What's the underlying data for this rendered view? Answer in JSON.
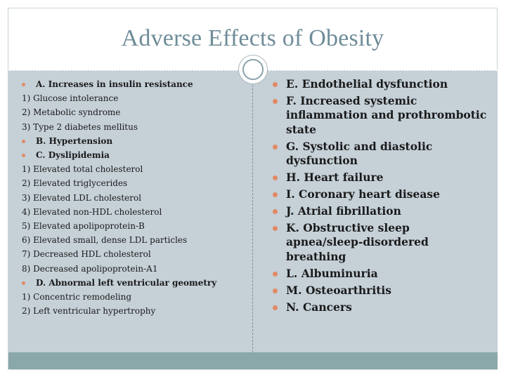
{
  "slide": {
    "title": "Adverse Effects of Obesity",
    "left_items": [
      {
        "kind": "head",
        "text": "A. Increases in insulin resistance"
      },
      {
        "kind": "sub",
        "text": "1) Glucose intolerance"
      },
      {
        "kind": "sub",
        "text": "2) Metabolic syndrome"
      },
      {
        "kind": "sub",
        "text": "3) Type 2 diabetes mellitus"
      },
      {
        "kind": "head",
        "text": "B. Hypertension"
      },
      {
        "kind": "head",
        "text": "C. Dyslipidemia"
      },
      {
        "kind": "sub",
        "text": "1) Elevated total cholesterol"
      },
      {
        "kind": "sub",
        "text": "2) Elevated triglycerides"
      },
      {
        "kind": "sub",
        "text": "3) Elevated LDL cholesterol"
      },
      {
        "kind": "sub",
        "text": "4) Elevated non-HDL cholesterol"
      },
      {
        "kind": "sub",
        "text": "5) Elevated apolipoprotein-B"
      },
      {
        "kind": "sub",
        "text": "6) Elevated small, dense LDL particles"
      },
      {
        "kind": "sub",
        "text": "7) Decreased HDL cholesterol"
      },
      {
        "kind": "sub",
        "text": "8) Decreased apolipoprotein-A1"
      },
      {
        "kind": "head",
        "text": "D. Abnormal left ventricular geometry"
      },
      {
        "kind": "sub",
        "text": "1) Concentric remodeling"
      },
      {
        "kind": "sub",
        "text": "2) Left ventricular hypertrophy"
      }
    ],
    "right_items": [
      "E. Endothelial dysfunction",
      "F. Increased systemic inflammation and prothrombotic state",
      "G. Systolic and diastolic dysfunction",
      "H. Heart failure",
      "I. Coronary heart disease",
      "J. Atrial fibrillation",
      "K. Obstructive sleep apnea/sleep-disordered breathing",
      "L. Albuminuria",
      "M. Osteoarthritis",
      "N. Cancers"
    ],
    "colors": {
      "title": "#6f8d99",
      "panel": "#c5d0d7",
      "footer": "#8aa7a9",
      "bullet": "#e28a65"
    }
  }
}
